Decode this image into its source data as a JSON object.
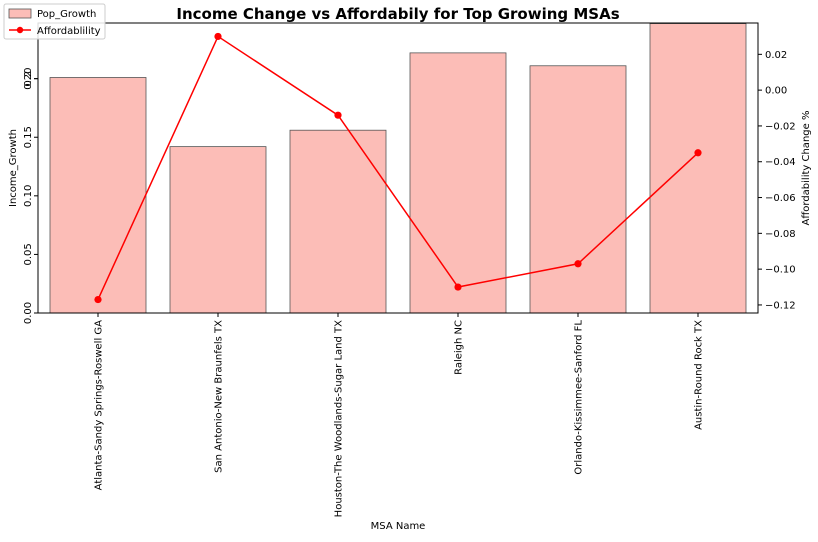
{
  "chart_data": {
    "type": "bar",
    "title": "Income Change vs Affordabily for Top Growing MSAs",
    "xlabel": "MSA Name",
    "ylabel": "Income_Growth",
    "y2label": "Affordability Change %",
    "categories": [
      "Atlanta-Sandy Springs-Roswell GA",
      "San Antonio-New Braunfels TX",
      "Houston-The Woodlands-Sugar Land TX",
      "Raleigh NC",
      "Orlando-Kissimmee-Sanford FL",
      "Austin-Round Rock TX"
    ],
    "series": [
      {
        "name": "Pop_Growth",
        "type": "bar",
        "axis": "left",
        "values": [
          0.201,
          0.142,
          0.156,
          0.222,
          0.211,
          0.247
        ]
      },
      {
        "name": "Affordablility",
        "type": "line",
        "axis": "right",
        "values": [
          -0.117,
          0.03,
          -0.014,
          -0.11,
          -0.097,
          -0.035
        ]
      }
    ],
    "ylim": [
      0,
      0.2475
    ],
    "y2lim": [
      -0.1245,
      0.0375
    ],
    "yticks": [
      "0.00",
      "0.05",
      "0.10",
      "0.15",
      "0.20",
      "0.2"
    ],
    "y2ticks": [
      "0.02",
      "0.00",
      "−0.02",
      "−0.04",
      "−0.06",
      "−0.08",
      "−0.10",
      "−0.12"
    ],
    "legend_position": "top-left",
    "grid": false,
    "colors": {
      "bar_fill": "#fcbdb7",
      "bar_edge": "#555555",
      "line": "#ff0000"
    }
  }
}
